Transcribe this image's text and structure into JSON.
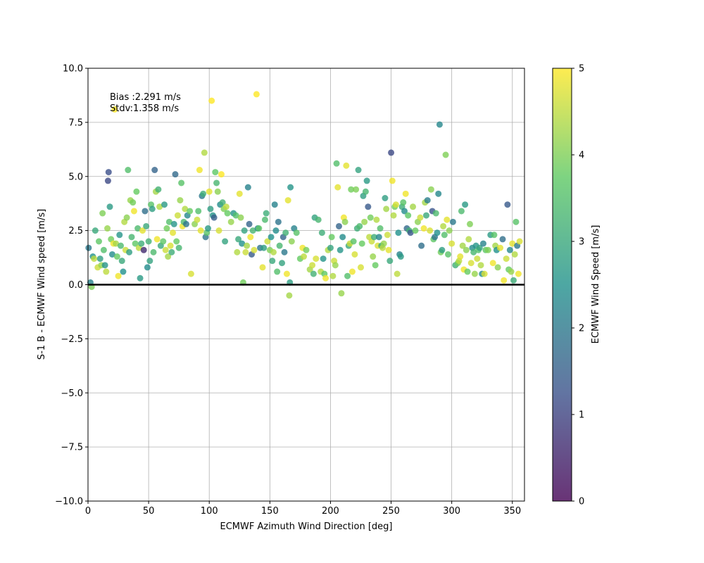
{
  "chart_data": {
    "type": "scatter",
    "xlabel": "ECMWF Azimuth Wind Direction [deg]",
    "ylabel": "S-1 B - ECMWF Wind speed [m/s]",
    "xlim": [
      0,
      360
    ],
    "ylim": [
      -10,
      10
    ],
    "x_ticks": [
      "0",
      "50",
      "100",
      "150",
      "200",
      "250",
      "300",
      "350"
    ],
    "y_ticks": [
      "10.0",
      "7.5",
      "5.0",
      "2.5",
      "0.0",
      "−2.5",
      "−5.0",
      "−7.5",
      "−10.0"
    ],
    "grid": true,
    "zero_line": true,
    "annotations": {
      "bias": "Bias :2.291 m/s",
      "stdv": "Stdv:1.358 m/s"
    },
    "colorbar": {
      "label": "ECMWF Wind Speed [m/s]",
      "range": [
        0,
        5
      ],
      "ticks": [
        "0",
        "1",
        "2",
        "3",
        "4",
        "5"
      ],
      "colormap": [
        "#440154",
        "#3b528b",
        "#21918c",
        "#5ec962",
        "#fde725"
      ]
    },
    "points": [
      [
        0.5,
        1.7,
        2.0
      ],
      [
        2,
        0.1,
        2.2
      ],
      [
        3,
        -0.1,
        4.0
      ],
      [
        4,
        1.3,
        2.5
      ],
      [
        5,
        1.2,
        4.5
      ],
      [
        6,
        2.5,
        3.0
      ],
      [
        8,
        0.8,
        4.6
      ],
      [
        9,
        2.0,
        3.7
      ],
      [
        10,
        1.2,
        2.8
      ],
      [
        11,
        0.9,
        4.2
      ],
      [
        12,
        3.3,
        4.0
      ],
      [
        13,
        1.6,
        3.5
      ],
      [
        14,
        0.9,
        2.6
      ],
      [
        15,
        0.6,
        4.5
      ],
      [
        16,
        2.6,
        4.2
      ],
      [
        17,
        5.2,
        1.2
      ],
      [
        16.5,
        4.8,
        1.1
      ],
      [
        18,
        3.6,
        2.7
      ],
      [
        19,
        2.1,
        3.9
      ],
      [
        20,
        1.4,
        2.4
      ],
      [
        21,
        1.9,
        4.9
      ],
      [
        22,
        8.1,
        5.0
      ],
      [
        23,
        1.9,
        4.3
      ],
      [
        24,
        1.3,
        3.8
      ],
      [
        25,
        0.4,
        4.9
      ],
      [
        26,
        2.3,
        2.6
      ],
      [
        27,
        1.8,
        3.4
      ],
      [
        28,
        1.1,
        3.0
      ],
      [
        29,
        0.6,
        2.5
      ],
      [
        30,
        2.9,
        4.4
      ],
      [
        31,
        1.6,
        4.6
      ],
      [
        32,
        3.1,
        4.1
      ],
      [
        33,
        5.3,
        3.5
      ],
      [
        34,
        1.5,
        2.8
      ],
      [
        35,
        3.9,
        4.2
      ],
      [
        36,
        2.2,
        3.3
      ],
      [
        37,
        3.8,
        3.9
      ],
      [
        38,
        3.4,
        4.9
      ],
      [
        39,
        1.9,
        3.7
      ],
      [
        40,
        4.3,
        3.8
      ],
      [
        41,
        2.6,
        3.4
      ],
      [
        42,
        1.7,
        4.5
      ],
      [
        43,
        0.3,
        2.7
      ],
      [
        44,
        1.9,
        3.1
      ],
      [
        45,
        2.5,
        4.8
      ],
      [
        46,
        1.6,
        0.6
      ],
      [
        47,
        3.4,
        1.8
      ],
      [
        48,
        2.7,
        3.0
      ],
      [
        49,
        0.8,
        2.4
      ],
      [
        50,
        2.0,
        3.2
      ],
      [
        51,
        1.1,
        2.9
      ],
      [
        52,
        3.7,
        3.6
      ],
      [
        53,
        3.5,
        2.8
      ],
      [
        54,
        1.5,
        3.4
      ],
      [
        55,
        5.3,
        1.6
      ],
      [
        56,
        4.3,
        4.3
      ],
      [
        57,
        2.1,
        4.9
      ],
      [
        58,
        4.4,
        3.2
      ],
      [
        59,
        3.6,
        4.4
      ],
      [
        60,
        1.8,
        3.0
      ],
      [
        62,
        2.0,
        3.7
      ],
      [
        63,
        3.7,
        2.7
      ],
      [
        64,
        1.6,
        4.6
      ],
      [
        65,
        2.6,
        3.9
      ],
      [
        66,
        1.3,
        4.3
      ],
      [
        67,
        2.9,
        3.5
      ],
      [
        68,
        1.8,
        4.7
      ],
      [
        69,
        1.5,
        3.1
      ],
      [
        70,
        2.4,
        4.8
      ],
      [
        71,
        2.8,
        2.6
      ],
      [
        72,
        5.1,
        1.7
      ],
      [
        73,
        2.0,
        3.8
      ],
      [
        74,
        3.2,
        4.6
      ],
      [
        75,
        1.7,
        3.3
      ],
      [
        76,
        3.9,
        4.2
      ],
      [
        77,
        4.7,
        3.6
      ],
      [
        78,
        2.7,
        4.9
      ],
      [
        79,
        2.9,
        3.4
      ],
      [
        80,
        3.5,
        4.4
      ],
      [
        81,
        2.8,
        1.9
      ],
      [
        82,
        3.2,
        2.3
      ],
      [
        84,
        3.4,
        3.8
      ],
      [
        85,
        0.5,
        4.7
      ],
      [
        88,
        2.8,
        4.1
      ],
      [
        90,
        3.0,
        4.6
      ],
      [
        91,
        3.4,
        3.5
      ],
      [
        92,
        5.3,
        4.9
      ],
      [
        93,
        2.5,
        4.8
      ],
      [
        94,
        4.1,
        2.0
      ],
      [
        95,
        4.2,
        3.1
      ],
      [
        96,
        6.1,
        4.4
      ],
      [
        97,
        2.2,
        1.9
      ],
      [
        98,
        2.4,
        3.6
      ],
      [
        99,
        2.6,
        2.7
      ],
      [
        100,
        4.3,
        4.8
      ],
      [
        101,
        3.5,
        2.8
      ],
      [
        102,
        8.5,
        5.0
      ],
      [
        103,
        3.2,
        2.6
      ],
      [
        104,
        3.1,
        1.5
      ],
      [
        105,
        5.2,
        3.7
      ],
      [
        106,
        4.7,
        3.3
      ],
      [
        107,
        4.3,
        4.1
      ],
      [
        108,
        2.5,
        4.7
      ],
      [
        109,
        3.7,
        2.4
      ],
      [
        110,
        5.1,
        5.0
      ],
      [
        111,
        3.8,
        3.2
      ],
      [
        112,
        3.5,
        4.0
      ],
      [
        113,
        2.0,
        2.9
      ],
      [
        114,
        3.6,
        4.5
      ],
      [
        115,
        3.3,
        3.8
      ],
      [
        118,
        2.9,
        4.2
      ],
      [
        120,
        3.3,
        2.6
      ],
      [
        122,
        3.2,
        3.5
      ],
      [
        123,
        1.5,
        4.4
      ],
      [
        124,
        2.1,
        3.0
      ],
      [
        125,
        4.2,
        4.8
      ],
      [
        126,
        3.1,
        4.1
      ],
      [
        127,
        1.9,
        2.5
      ],
      [
        128,
        0.1,
        3.9
      ],
      [
        129,
        2.5,
        2.9
      ],
      [
        130,
        1.5,
        4.6
      ],
      [
        131,
        1.8,
        4.3
      ],
      [
        132,
        4.5,
        2.2
      ],
      [
        133,
        2.8,
        1.6
      ],
      [
        134,
        2.2,
        4.9
      ],
      [
        135,
        1.4,
        1.4
      ],
      [
        136,
        2.5,
        3.3
      ],
      [
        137,
        1.6,
        4.7
      ],
      [
        139,
        8.8,
        5.0
      ],
      [
        140,
        2.6,
        2.3
      ],
      [
        141,
        2.6,
        3.7
      ],
      [
        142,
        1.7,
        1.9
      ],
      [
        144,
        0.8,
        4.8
      ],
      [
        145,
        1.7,
        2.8
      ],
      [
        146,
        3.0,
        3.4
      ],
      [
        147,
        3.3,
        3.1
      ],
      [
        148,
        2.0,
        4.6
      ],
      [
        150,
        1.6,
        4.0
      ],
      [
        151,
        2.2,
        2.5
      ],
      [
        152,
        1.1,
        3.0
      ],
      [
        153,
        1.5,
        4.4
      ],
      [
        154,
        3.7,
        2.2
      ],
      [
        155,
        2.5,
        2.4
      ],
      [
        156,
        0.6,
        3.5
      ],
      [
        157,
        2.9,
        1.9
      ],
      [
        158,
        1.8,
        3.3
      ],
      [
        160,
        1.0,
        2.9
      ],
      [
        161,
        2.2,
        1.6
      ],
      [
        162,
        1.5,
        2.0
      ],
      [
        163,
        2.4,
        3.2
      ],
      [
        164,
        0.5,
        4.9
      ],
      [
        165,
        3.9,
        4.8
      ],
      [
        166,
        -0.5,
        4.3
      ],
      [
        167,
        4.5,
        2.6
      ],
      [
        166.5,
        0.1,
        2.8
      ],
      [
        168,
        2.0,
        4.1
      ],
      [
        170,
        2.6,
        2.2
      ],
      [
        172,
        2.4,
        3.6
      ],
      [
        175,
        1.2,
        3.8
      ],
      [
        177,
        1.7,
        4.9
      ],
      [
        178,
        1.3,
        4.5
      ],
      [
        180,
        1.6,
        3.9
      ],
      [
        183,
        0.7,
        4.3
      ],
      [
        185,
        0.9,
        4.6
      ],
      [
        186,
        0.5,
        3.2
      ],
      [
        187,
        3.1,
        2.9
      ],
      [
        188,
        1.2,
        4.7
      ],
      [
        190,
        3.0,
        3.3
      ],
      [
        192,
        0.6,
        4.4
      ],
      [
        193,
        2.4,
        3.1
      ],
      [
        194,
        1.2,
        2.6
      ],
      [
        195,
        0.5,
        3.7
      ],
      [
        196,
        0.3,
        4.9
      ],
      [
        198,
        1.6,
        4.4
      ],
      [
        200,
        1.7,
        2.9
      ],
      [
        201,
        2.2,
        3.8
      ],
      [
        202,
        0.4,
        4.4
      ],
      [
        203,
        1.1,
        4.6
      ],
      [
        204,
        0.9,
        4.2
      ],
      [
        205,
        5.6,
        3.5
      ],
      [
        206,
        4.5,
        4.8
      ],
      [
        207,
        2.7,
        1.6
      ],
      [
        208,
        1.6,
        2.6
      ],
      [
        209,
        -0.4,
        4.2
      ],
      [
        210,
        2.2,
        2.4
      ],
      [
        211,
        3.1,
        4.9
      ],
      [
        212,
        2.9,
        4.1
      ],
      [
        213,
        5.5,
        4.8
      ],
      [
        214,
        0.4,
        3.5
      ],
      [
        215,
        1.8,
        3.0
      ],
      [
        216,
        1.9,
        4.6
      ],
      [
        217,
        4.4,
        3.9
      ],
      [
        218,
        0.6,
        4.9
      ],
      [
        219,
        2.0,
        3.6
      ],
      [
        220,
        1.4,
        4.7
      ],
      [
        221,
        4.4,
        4.0
      ],
      [
        222,
        2.6,
        3.1
      ],
      [
        223,
        5.3,
        2.9
      ],
      [
        224,
        2.7,
        3.4
      ],
      [
        225,
        0.8,
        4.7
      ],
      [
        226,
        1.9,
        3.8
      ],
      [
        227,
        4.1,
        2.8
      ],
      [
        228,
        2.9,
        4.2
      ],
      [
        229,
        4.3,
        3.3
      ],
      [
        230,
        4.8,
        2.7
      ],
      [
        231,
        3.6,
        1.4
      ],
      [
        232,
        2.2,
        4.5
      ],
      [
        233,
        3.1,
        3.9
      ],
      [
        234,
        2.0,
        4.6
      ],
      [
        235,
        1.3,
        4.2
      ],
      [
        236,
        2.2,
        3.1
      ],
      [
        237,
        0.9,
        3.8
      ],
      [
        238,
        3.0,
        4.4
      ],
      [
        239,
        1.8,
        4.7
      ],
      [
        240,
        2.2,
        2.3
      ],
      [
        241,
        2.6,
        3.5
      ],
      [
        242,
        1.8,
        3.0
      ],
      [
        243,
        1.7,
        4.5
      ],
      [
        244,
        1.9,
        4.2
      ],
      [
        245,
        4.0,
        2.8
      ],
      [
        246,
        3.5,
        4.3
      ],
      [
        247,
        2.3,
        4.6
      ],
      [
        248,
        1.6,
        4.8
      ],
      [
        249,
        1.1,
        3.0
      ],
      [
        250,
        6.1,
        1.1
      ],
      [
        251,
        4.8,
        4.9
      ],
      [
        252,
        3.2,
        4.4
      ],
      [
        253,
        3.6,
        3.9
      ],
      [
        254,
        3.7,
        4.7
      ],
      [
        255,
        0.5,
        4.5
      ],
      [
        256,
        2.4,
        2.5
      ],
      [
        257,
        1.4,
        2.2
      ],
      [
        258,
        1.3,
        2.7
      ],
      [
        259,
        3.6,
        3.1
      ],
      [
        260,
        3.8,
        3.6
      ],
      [
        261,
        3.4,
        2.4
      ],
      [
        262,
        4.2,
        4.9
      ],
      [
        263,
        2.6,
        1.7
      ],
      [
        264,
        3.2,
        3.7
      ],
      [
        265,
        2.5,
        3.2
      ],
      [
        266,
        2.4,
        1.3
      ],
      [
        268,
        3.6,
        4.3
      ],
      [
        270,
        2.5,
        3.8
      ],
      [
        272,
        2.9,
        4.1
      ],
      [
        274,
        3.1,
        4.6
      ],
      [
        275,
        1.8,
        1.8
      ],
      [
        277,
        2.6,
        4.9
      ],
      [
        278,
        3.8,
        4.3
      ],
      [
        279,
        3.2,
        3.0
      ],
      [
        280,
        3.9,
        2.1
      ],
      [
        282,
        2.5,
        4.7
      ],
      [
        283,
        4.4,
        4.1
      ],
      [
        284,
        3.4,
        1.3
      ],
      [
        285,
        2.1,
        3.7
      ],
      [
        286,
        2.2,
        1.9
      ],
      [
        287,
        3.3,
        3.4
      ],
      [
        288,
        2.4,
        2.5
      ],
      [
        289,
        4.2,
        2.3
      ],
      [
        290,
        7.4,
        2.3
      ],
      [
        291,
        1.5,
        3.9
      ],
      [
        292,
        1.6,
        2.8
      ],
      [
        293,
        2.7,
        4.4
      ],
      [
        294,
        2.3,
        3.5
      ],
      [
        295,
        6.0,
        4.0
      ],
      [
        296,
        3.0,
        4.8
      ],
      [
        297,
        1.4,
        3.6
      ],
      [
        298,
        2.5,
        4.1
      ],
      [
        300,
        1.9,
        4.7
      ],
      [
        301,
        2.9,
        2.0
      ],
      [
        303,
        0.9,
        3.1
      ],
      [
        305,
        1.0,
        3.9
      ],
      [
        306,
        1.1,
        4.5
      ],
      [
        307,
        1.3,
        4.8
      ],
      [
        308,
        3.4,
        3.4
      ],
      [
        309,
        1.8,
        4.3
      ],
      [
        310,
        0.7,
        4.9
      ],
      [
        311,
        3.7,
        2.7
      ],
      [
        312,
        1.6,
        4.1
      ],
      [
        313,
        0.6,
        3.8
      ],
      [
        314,
        2.1,
        4.4
      ],
      [
        315,
        2.8,
        4.0
      ],
      [
        316,
        1.0,
        4.7
      ],
      [
        317,
        1.7,
        2.4
      ],
      [
        318,
        1.5,
        3.3
      ],
      [
        319,
        0.5,
        4.2
      ],
      [
        320,
        1.8,
        2.6
      ],
      [
        321,
        1.2,
        4.6
      ],
      [
        322,
        1.6,
        3.5
      ],
      [
        323,
        1.7,
        2.9
      ],
      [
        324,
        0.9,
        4.4
      ],
      [
        325,
        0.5,
        2.4
      ],
      [
        326,
        1.9,
        2.2
      ],
      [
        327,
        0.5,
        4.7
      ],
      [
        328,
        1.6,
        3.7
      ],
      [
        330,
        1.6,
        4.0
      ],
      [
        332,
        2.3,
        2.7
      ],
      [
        334,
        1.0,
        4.9
      ],
      [
        335,
        2.3,
        3.6
      ],
      [
        336,
        1.8,
        4.3
      ],
      [
        337,
        1.6,
        2.5
      ],
      [
        338,
        0.8,
        4.1
      ],
      [
        340,
        1.7,
        4.8
      ],
      [
        342,
        2.1,
        1.8
      ],
      [
        343,
        0.2,
        4.9
      ],
      [
        345,
        1.2,
        4.6
      ],
      [
        346,
        3.7,
        1.4
      ],
      [
        347,
        0.7,
        3.8
      ],
      [
        348,
        1.6,
        2.3
      ],
      [
        349,
        0.6,
        4.2
      ],
      [
        350,
        1.9,
        4.8
      ],
      [
        351,
        0.2,
        3.1
      ],
      [
        352,
        1.4,
        4.4
      ],
      [
        353,
        2.9,
        3.6
      ],
      [
        354,
        1.8,
        2.0
      ],
      [
        355,
        0.5,
        4.9
      ],
      [
        356,
        2.0,
        4.7
      ]
    ]
  }
}
